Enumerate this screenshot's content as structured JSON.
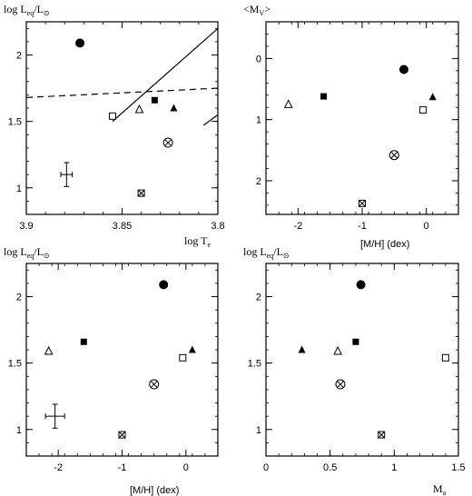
{
  "chart_data": [
    {
      "type": "scatter",
      "ylabel": "log L",
      "ylabel_sub": "eq",
      "ylabel_suffix": "/L",
      "ylabel_sun": "⊙",
      "xlabel": "log T",
      "xlabel_sub": "e",
      "xlim": [
        3.9,
        3.8
      ],
      "ylim": [
        0.8,
        2.25
      ],
      "xticks": [
        3.9,
        3.85,
        3.8
      ],
      "xtick_labels": [
        "3.9",
        "3.85",
        "3.8"
      ],
      "yticks": [
        1,
        1.5,
        2
      ],
      "ytick_labels": [
        "1",
        "1.5",
        "2"
      ],
      "points": [
        {
          "marker": "filled-circle",
          "x": 3.872,
          "y": 2.09
        },
        {
          "marker": "filled-square",
          "x": 3.833,
          "y": 1.66
        },
        {
          "marker": "filled-triangle",
          "x": 3.823,
          "y": 1.6
        },
        {
          "marker": "open-triangle",
          "x": 3.841,
          "y": 1.59
        },
        {
          "marker": "open-square",
          "x": 3.855,
          "y": 1.54
        },
        {
          "marker": "circled-x",
          "x": 3.826,
          "y": 1.34
        },
        {
          "marker": "boxed-x",
          "x": 3.84,
          "y": 0.96
        }
      ],
      "error_bar": {
        "x": 3.879,
        "y": 1.1,
        "xerr": 0.003,
        "yerr": 0.09
      },
      "lines": [
        {
          "style": "solid",
          "points": [
            [
              3.855,
              1.5
            ],
            [
              3.8,
              2.2
            ]
          ]
        },
        {
          "style": "solid",
          "points": [
            [
              3.8075,
              1.47
            ],
            [
              3.8,
              1.55
            ]
          ]
        },
        {
          "style": "dashed",
          "points": [
            [
              3.9,
              1.68
            ],
            [
              3.8,
              1.75
            ]
          ]
        }
      ]
    },
    {
      "type": "scatter",
      "ylabel": "<M",
      "ylabel_sub": "V",
      "ylabel_suffix": ">",
      "xlabel": "[M/H] (dex)",
      "xlim": [
        -2.5,
        0.5
      ],
      "ylim": [
        2.55,
        -0.6
      ],
      "xticks": [
        -2,
        -1,
        0
      ],
      "xtick_labels": [
        "-2",
        "-1",
        "0"
      ],
      "yticks": [
        0,
        1,
        2
      ],
      "ytick_labels": [
        "0",
        "1",
        "2"
      ],
      "points": [
        {
          "marker": "filled-circle",
          "x": -0.35,
          "y": 0.18
        },
        {
          "marker": "filled-square",
          "x": -1.6,
          "y": 0.62
        },
        {
          "marker": "filled-triangle",
          "x": 0.1,
          "y": 0.63
        },
        {
          "marker": "open-triangle",
          "x": -2.15,
          "y": 0.75
        },
        {
          "marker": "open-square",
          "x": -0.05,
          "y": 0.84
        },
        {
          "marker": "circled-x",
          "x": -0.5,
          "y": 1.58
        },
        {
          "marker": "boxed-x",
          "x": -1.0,
          "y": 2.37
        }
      ]
    },
    {
      "type": "scatter",
      "ylabel": "log L",
      "ylabel_sub": "eq",
      "ylabel_suffix": "/L",
      "ylabel_sun": "⊙",
      "xlabel": "[M/H] (dex)",
      "xlim": [
        -2.5,
        0.5
      ],
      "ylim": [
        0.8,
        2.25
      ],
      "xticks": [
        -2,
        -1,
        0
      ],
      "xtick_labels": [
        "-2",
        "-1",
        "0"
      ],
      "yticks": [
        1,
        1.5,
        2
      ],
      "ytick_labels": [
        "1",
        "1.5",
        "2"
      ],
      "points": [
        {
          "marker": "filled-circle",
          "x": -0.35,
          "y": 2.09
        },
        {
          "marker": "filled-square",
          "x": -1.6,
          "y": 1.66
        },
        {
          "marker": "filled-triangle",
          "x": 0.1,
          "y": 1.6
        },
        {
          "marker": "open-triangle",
          "x": -2.15,
          "y": 1.59
        },
        {
          "marker": "open-square",
          "x": -0.05,
          "y": 1.54
        },
        {
          "marker": "circled-x",
          "x": -0.5,
          "y": 1.34
        },
        {
          "marker": "boxed-x",
          "x": -1.0,
          "y": 0.96
        }
      ],
      "error_bar": {
        "x": -2.05,
        "y": 1.1,
        "xerr": 0.15,
        "yerr": 0.09
      }
    },
    {
      "type": "scatter",
      "ylabel": "log L",
      "ylabel_sub": "eq",
      "ylabel_suffix": "/L",
      "ylabel_sun": "⊙",
      "xlabel": "M",
      "xlabel_sub": "a",
      "xlim": [
        0,
        1.5
      ],
      "ylim": [
        0.8,
        2.25
      ],
      "xticks": [
        0,
        0.5,
        1,
        1.5
      ],
      "xtick_labels": [
        "0",
        "0.5",
        "1",
        "1.5"
      ],
      "yticks": [
        1,
        1.5,
        2
      ],
      "ytick_labels": [
        "1",
        "1.5",
        "2"
      ],
      "points": [
        {
          "marker": "filled-circle",
          "x": 0.74,
          "y": 2.09
        },
        {
          "marker": "filled-square",
          "x": 0.7,
          "y": 1.66
        },
        {
          "marker": "filled-triangle",
          "x": 0.28,
          "y": 1.6
        },
        {
          "marker": "open-triangle",
          "x": 0.56,
          "y": 1.59
        },
        {
          "marker": "open-square",
          "x": 1.4,
          "y": 1.54
        },
        {
          "marker": "circled-x",
          "x": 0.58,
          "y": 1.34
        },
        {
          "marker": "boxed-x",
          "x": 0.9,
          "y": 0.96
        }
      ]
    }
  ]
}
